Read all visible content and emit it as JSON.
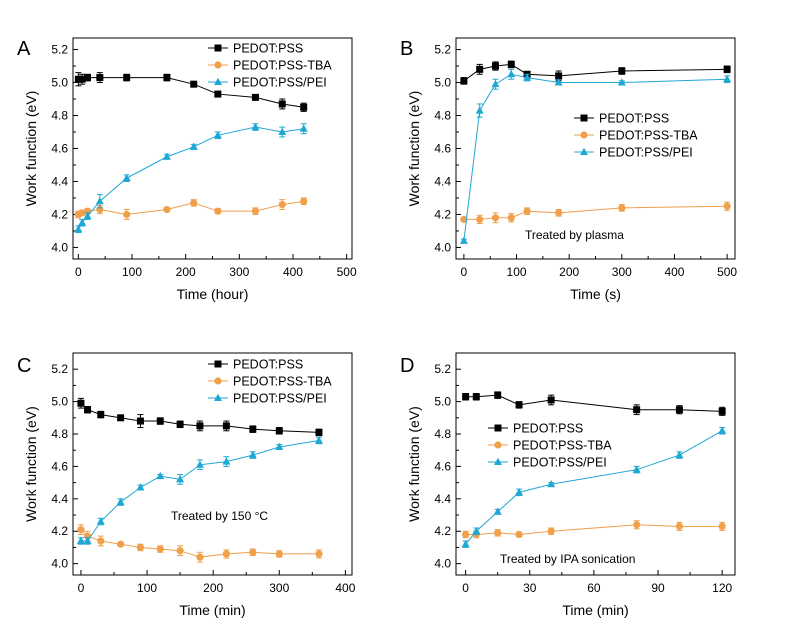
{
  "figure": {
    "series_styles": [
      {
        "color": "#000000",
        "marker": "square"
      },
      {
        "color": "#f0a04b",
        "marker": "circle"
      },
      {
        "color": "#1fa8d4",
        "marker": "triangle"
      }
    ]
  },
  "chart_data": [
    {
      "type": "line",
      "panel_label": "A",
      "xlabel": "Time (hour)",
      "ylabel": "Work function (eV)",
      "xlim": [
        -10,
        510
      ],
      "ylim": [
        3.93,
        5.27
      ],
      "xticks": [
        0,
        100,
        200,
        300,
        400,
        500
      ],
      "xtick_labels": [
        "0",
        "100",
        "200",
        "300",
        "400",
        "500"
      ],
      "yticks": [
        4.0,
        4.2,
        4.4,
        4.6,
        4.8,
        5.0,
        5.2
      ],
      "ytick_labels": [
        "4.0",
        "4.2",
        "4.4",
        "4.6",
        "4.8",
        "5.0",
        "5.2"
      ],
      "annotation": "",
      "legend": {
        "position": "top-right"
      },
      "series": [
        {
          "name": "PEDOT:PSS",
          "x": [
            0,
            7,
            17,
            40,
            90,
            165,
            215,
            260,
            330,
            380,
            420
          ],
          "y": [
            5.02,
            5.02,
            5.03,
            5.03,
            5.03,
            5.03,
            4.99,
            4.93,
            4.91,
            4.87,
            4.85
          ],
          "err": [
            0.04,
            0.03,
            0.02,
            0.03,
            0.02,
            0.02,
            0.005,
            0.01,
            0.015,
            0.03,
            0.025
          ]
        },
        {
          "name": "PEDOT:PSS-TBA",
          "x": [
            0,
            7,
            17,
            40,
            90,
            165,
            215,
            260,
            330,
            380,
            420
          ],
          "y": [
            4.2,
            4.21,
            4.22,
            4.23,
            4.2,
            4.23,
            4.27,
            4.22,
            4.22,
            4.26,
            4.28
          ],
          "err": [
            0.02,
            0.015,
            0.015,
            0.025,
            0.03,
            0.01,
            0.02,
            0.015,
            0.02,
            0.03,
            0.02
          ]
        },
        {
          "name": "PEDOT:PSS/PEI",
          "x": [
            0,
            7,
            17,
            40,
            90,
            165,
            215,
            260,
            330,
            380,
            420
          ],
          "y": [
            4.11,
            4.15,
            4.19,
            4.28,
            4.42,
            4.55,
            4.61,
            4.68,
            4.73,
            4.7,
            4.72
          ],
          "err": [
            0.02,
            0.02,
            0.02,
            0.04,
            0.02,
            0.015,
            0.015,
            0.02,
            0.02,
            0.03,
            0.03
          ]
        }
      ]
    },
    {
      "type": "line",
      "panel_label": "B",
      "xlabel": "Time (s)",
      "ylabel": "Work function (eV)",
      "xlim": [
        -15,
        515
      ],
      "ylim": [
        3.93,
        5.27
      ],
      "xticks": [
        0,
        100,
        200,
        300,
        400,
        500
      ],
      "xtick_labels": [
        "0",
        "100",
        "200",
        "300",
        "400",
        "500"
      ],
      "yticks": [
        4.0,
        4.2,
        4.4,
        4.6,
        4.8,
        5.0,
        5.2
      ],
      "ytick_labels": [
        "4.0",
        "4.2",
        "4.4",
        "4.6",
        "4.8",
        "5.0",
        "5.2"
      ],
      "annotation": "Treated by plasma",
      "legend": {
        "position": "center-right"
      },
      "series": [
        {
          "name": "PEDOT:PSS",
          "x": [
            0,
            30,
            60,
            90,
            120,
            180,
            300,
            500
          ],
          "y": [
            5.01,
            5.08,
            5.1,
            5.11,
            5.05,
            5.04,
            5.07,
            5.08
          ],
          "err": [
            0.02,
            0.03,
            0.025,
            0.02,
            0.015,
            0.03,
            0.02,
            0.02
          ]
        },
        {
          "name": "PEDOT:PSS-TBA",
          "x": [
            0,
            30,
            60,
            90,
            120,
            180,
            300,
            500
          ],
          "y": [
            4.17,
            4.17,
            4.18,
            4.18,
            4.22,
            4.21,
            4.24,
            4.25
          ],
          "err": [
            0.01,
            0.025,
            0.03,
            0.025,
            0.02,
            0.02,
            0.02,
            0.025
          ]
        },
        {
          "name": "PEDOT:PSS/PEI",
          "x": [
            0,
            30,
            60,
            90,
            120,
            180,
            300,
            500
          ],
          "y": [
            4.04,
            4.83,
            4.99,
            5.05,
            5.03,
            5.0,
            5.0,
            5.02
          ],
          "err": [
            0.01,
            0.04,
            0.03,
            0.03,
            0.02,
            0.015,
            0.01,
            0.02
          ]
        }
      ]
    },
    {
      "type": "line",
      "panel_label": "C",
      "xlabel": "Time (min)",
      "ylabel": "Work function (eV)",
      "xlim": [
        -12,
        410
      ],
      "ylim": [
        3.93,
        5.3
      ],
      "xticks": [
        0,
        100,
        200,
        300,
        400
      ],
      "xtick_labels": [
        "0",
        "100",
        "200",
        "300",
        "400"
      ],
      "yticks": [
        4.0,
        4.2,
        4.4,
        4.6,
        4.8,
        5.0,
        5.2
      ],
      "ytick_labels": [
        "4.0",
        "4.2",
        "4.4",
        "4.6",
        "4.8",
        "5.0",
        "5.2"
      ],
      "annotation": "Treated by 150 °C",
      "legend": {
        "position": "top-right"
      },
      "series": [
        {
          "name": "PEDOT:PSS",
          "x": [
            0,
            10,
            30,
            60,
            90,
            120,
            150,
            180,
            220,
            260,
            300,
            360
          ],
          "y": [
            4.99,
            4.95,
            4.92,
            4.9,
            4.88,
            4.88,
            4.86,
            4.85,
            4.85,
            4.83,
            4.82,
            4.81
          ],
          "err": [
            0.03,
            0.02,
            0.02,
            0.01,
            0.04,
            0.02,
            0.02,
            0.03,
            0.03,
            0.02,
            0.02,
            0.02
          ]
        },
        {
          "name": "PEDOT:PSS-TBA",
          "x": [
            0,
            10,
            30,
            60,
            90,
            120,
            150,
            180,
            220,
            260,
            300,
            360
          ],
          "y": [
            4.21,
            4.17,
            4.14,
            4.12,
            4.1,
            4.09,
            4.08,
            4.04,
            4.06,
            4.07,
            4.06,
            4.06
          ],
          "err": [
            0.03,
            0.03,
            0.03,
            0.01,
            0.02,
            0.02,
            0.03,
            0.03,
            0.025,
            0.02,
            0.02,
            0.025
          ]
        },
        {
          "name": "PEDOT:PSS/PEI",
          "x": [
            0,
            10,
            30,
            60,
            90,
            120,
            150,
            180,
            220,
            260,
            300,
            360
          ],
          "y": [
            4.14,
            4.14,
            4.26,
            4.38,
            4.47,
            4.54,
            4.52,
            4.61,
            4.63,
            4.67,
            4.72,
            4.76
          ],
          "err": [
            0.02,
            0.02,
            0.02,
            0.02,
            0.015,
            0.01,
            0.03,
            0.03,
            0.03,
            0.02,
            0.015,
            0.02
          ]
        }
      ]
    },
    {
      "type": "line",
      "panel_label": "D",
      "xlabel": "Time (min)",
      "ylabel": "Work function (eV)",
      "xlim": [
        -4.5,
        126
      ],
      "ylim": [
        3.93,
        5.3
      ],
      "xticks": [
        0,
        30,
        60,
        90,
        120
      ],
      "xtick_labels": [
        "0",
        "30",
        "60",
        "90",
        "120"
      ],
      "yticks": [
        4.0,
        4.2,
        4.4,
        4.6,
        4.8,
        5.0,
        5.2
      ],
      "ytick_labels": [
        "4.0",
        "4.2",
        "4.4",
        "4.6",
        "4.8",
        "5.0",
        "5.2"
      ],
      "annotation": "Treated by IPA sonication",
      "legend": {
        "position": "center-left"
      },
      "series": [
        {
          "name": "PEDOT:PSS",
          "x": [
            0,
            5,
            15,
            25,
            40,
            80,
            100,
            120
          ],
          "y": [
            5.03,
            5.03,
            5.04,
            4.98,
            5.01,
            4.95,
            4.95,
            4.94
          ],
          "err": [
            0.02,
            0.02,
            0.02,
            0.02,
            0.03,
            0.03,
            0.025,
            0.025
          ]
        },
        {
          "name": "PEDOT:PSS-TBA",
          "x": [
            0,
            5,
            15,
            25,
            40,
            80,
            100,
            120
          ],
          "y": [
            4.18,
            4.18,
            4.19,
            4.18,
            4.2,
            4.24,
            4.23,
            4.23
          ],
          "err": [
            0.02,
            0.02,
            0.02,
            0.015,
            0.02,
            0.025,
            0.025,
            0.025
          ]
        },
        {
          "name": "PEDOT:PSS/PEI",
          "x": [
            0,
            5,
            15,
            25,
            40,
            80,
            100,
            120
          ],
          "y": [
            4.12,
            4.2,
            4.32,
            4.44,
            4.49,
            4.58,
            4.67,
            4.82
          ],
          "err": [
            0.02,
            0.02,
            0.015,
            0.02,
            0.01,
            0.02,
            0.02,
            0.02
          ]
        }
      ]
    }
  ]
}
